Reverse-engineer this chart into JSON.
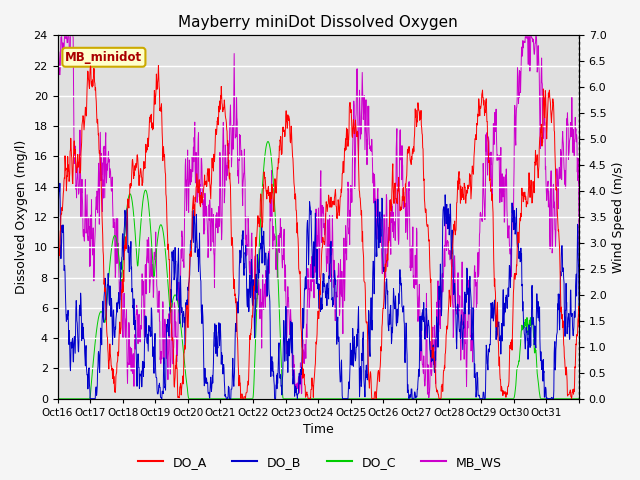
{
  "title": "Mayberry miniDot Dissolved Oxygen",
  "xlabel": "Time",
  "ylabel_left": "Dissolved Oxygen (mg/l)",
  "ylabel_right": "Wind Speed (m/s)",
  "ylim_left": [
    0,
    24
  ],
  "ylim_right": [
    0.0,
    7.0
  ],
  "yticks_left": [
    0,
    2,
    4,
    6,
    8,
    10,
    12,
    14,
    16,
    18,
    20,
    22,
    24
  ],
  "yticks_right": [
    0.0,
    0.5,
    1.0,
    1.5,
    2.0,
    2.5,
    3.0,
    3.5,
    4.0,
    4.5,
    5.0,
    5.5,
    6.0,
    6.5,
    7.0
  ],
  "xtick_labels": [
    "Oct 16",
    "Oct 17",
    "Oct 18",
    "Oct 19",
    "Oct 20",
    "Oct 21",
    "Oct 22",
    "Oct 23",
    "Oct 24",
    "Oct 25",
    "Oct 26",
    "Oct 27",
    "Oct 28",
    "Oct 29",
    "Oct 30",
    "Oct 31"
  ],
  "color_DO_A": "#ff0000",
  "color_DO_B": "#0000cc",
  "color_DO_C": "#00cc00",
  "color_MB_WS": "#cc00cc",
  "legend_label_A": "DO_A",
  "legend_label_B": "DO_B",
  "legend_label_C": "DO_C",
  "legend_label_WS": "MB_WS",
  "annotation_text": "MB_minidot",
  "annotation_fg": "#aa0000",
  "annotation_bg": "#ffffcc",
  "annotation_edge": "#ccaa00",
  "background_color": "#e0e0e0",
  "fig_background": "#f5f5f5",
  "grid_color": "#ffffff",
  "num_days": 16,
  "points_per_day": 96,
  "title_fontsize": 11,
  "label_fontsize": 9,
  "tick_fontsize": 8,
  "legend_fontsize": 9
}
